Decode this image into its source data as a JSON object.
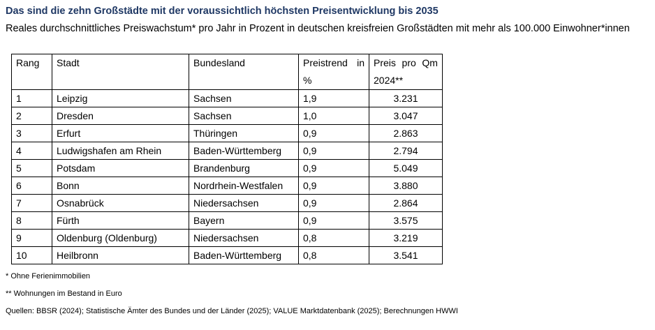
{
  "title": "Das sind die zehn Großstädte mit der voraussichtlich höchsten Preisentwicklung bis 2035",
  "subtitle": "Reales durchschnittliches Preiswachstum* pro Jahr in Prozent in deutschen kreisfreien Großstädten mit mehr als 100.000 Einwohner*innen",
  "table": {
    "headers": {
      "rang": "Rang",
      "stadt": "Stadt",
      "bundesland": "Bundesland",
      "trend_line1_a": "Preistrend",
      "trend_line1_b": "in",
      "trend_line2": "%",
      "preis_line1_a": "Preis",
      "preis_line1_b": "pro",
      "preis_line1_c": "Qm",
      "preis_line2": "2024**"
    },
    "rows": [
      {
        "rang": "1",
        "stadt": "Leipzig",
        "bundesland": "Sachsen",
        "trend": "1,9",
        "preis": "3.231"
      },
      {
        "rang": "2",
        "stadt": "Dresden",
        "bundesland": "Sachsen",
        "trend": "1,0",
        "preis": "3.047"
      },
      {
        "rang": "3",
        "stadt": "Erfurt",
        "bundesland": "Thüringen",
        "trend": "0,9",
        "preis": "2.863"
      },
      {
        "rang": "4",
        "stadt": "Ludwigshafen am Rhein",
        "bundesland": "Baden-Württemberg",
        "trend": "0,9",
        "preis": "2.794"
      },
      {
        "rang": "5",
        "stadt": "Potsdam",
        "bundesland": "Brandenburg",
        "trend": "0,9",
        "preis": "5.049"
      },
      {
        "rang": "6",
        "stadt": "Bonn",
        "bundesland": "Nordrhein-Westfalen",
        "trend": "0,9",
        "preis": "3.880"
      },
      {
        "rang": "7",
        "stadt": "Osnabrück",
        "bundesland": "Niedersachsen",
        "trend": "0,9",
        "preis": "2.864"
      },
      {
        "rang": "8",
        "stadt": "Fürth",
        "bundesland": "Bayern",
        "trend": "0,9",
        "preis": "3.575"
      },
      {
        "rang": "9",
        "stadt": "Oldenburg (Oldenburg)",
        "bundesland": "Niedersachsen",
        "trend": "0,8",
        "preis": "3.219"
      },
      {
        "rang": "10",
        "stadt": "Heilbronn",
        "bundesland": "Baden-Württemberg",
        "trend": "0,8",
        "preis": "3.541"
      }
    ]
  },
  "footnotes": {
    "note1": "* Ohne Ferienimmobilien",
    "note2": "** Wohnungen im Bestand in Euro",
    "sources": "Quellen: BBSR (2024); Statistische Ämter des Bundes und der Länder (2025); VALUE Marktdatenbank (2025); Berechnungen HWWI"
  },
  "colors": {
    "title": "#1f3864"
  }
}
